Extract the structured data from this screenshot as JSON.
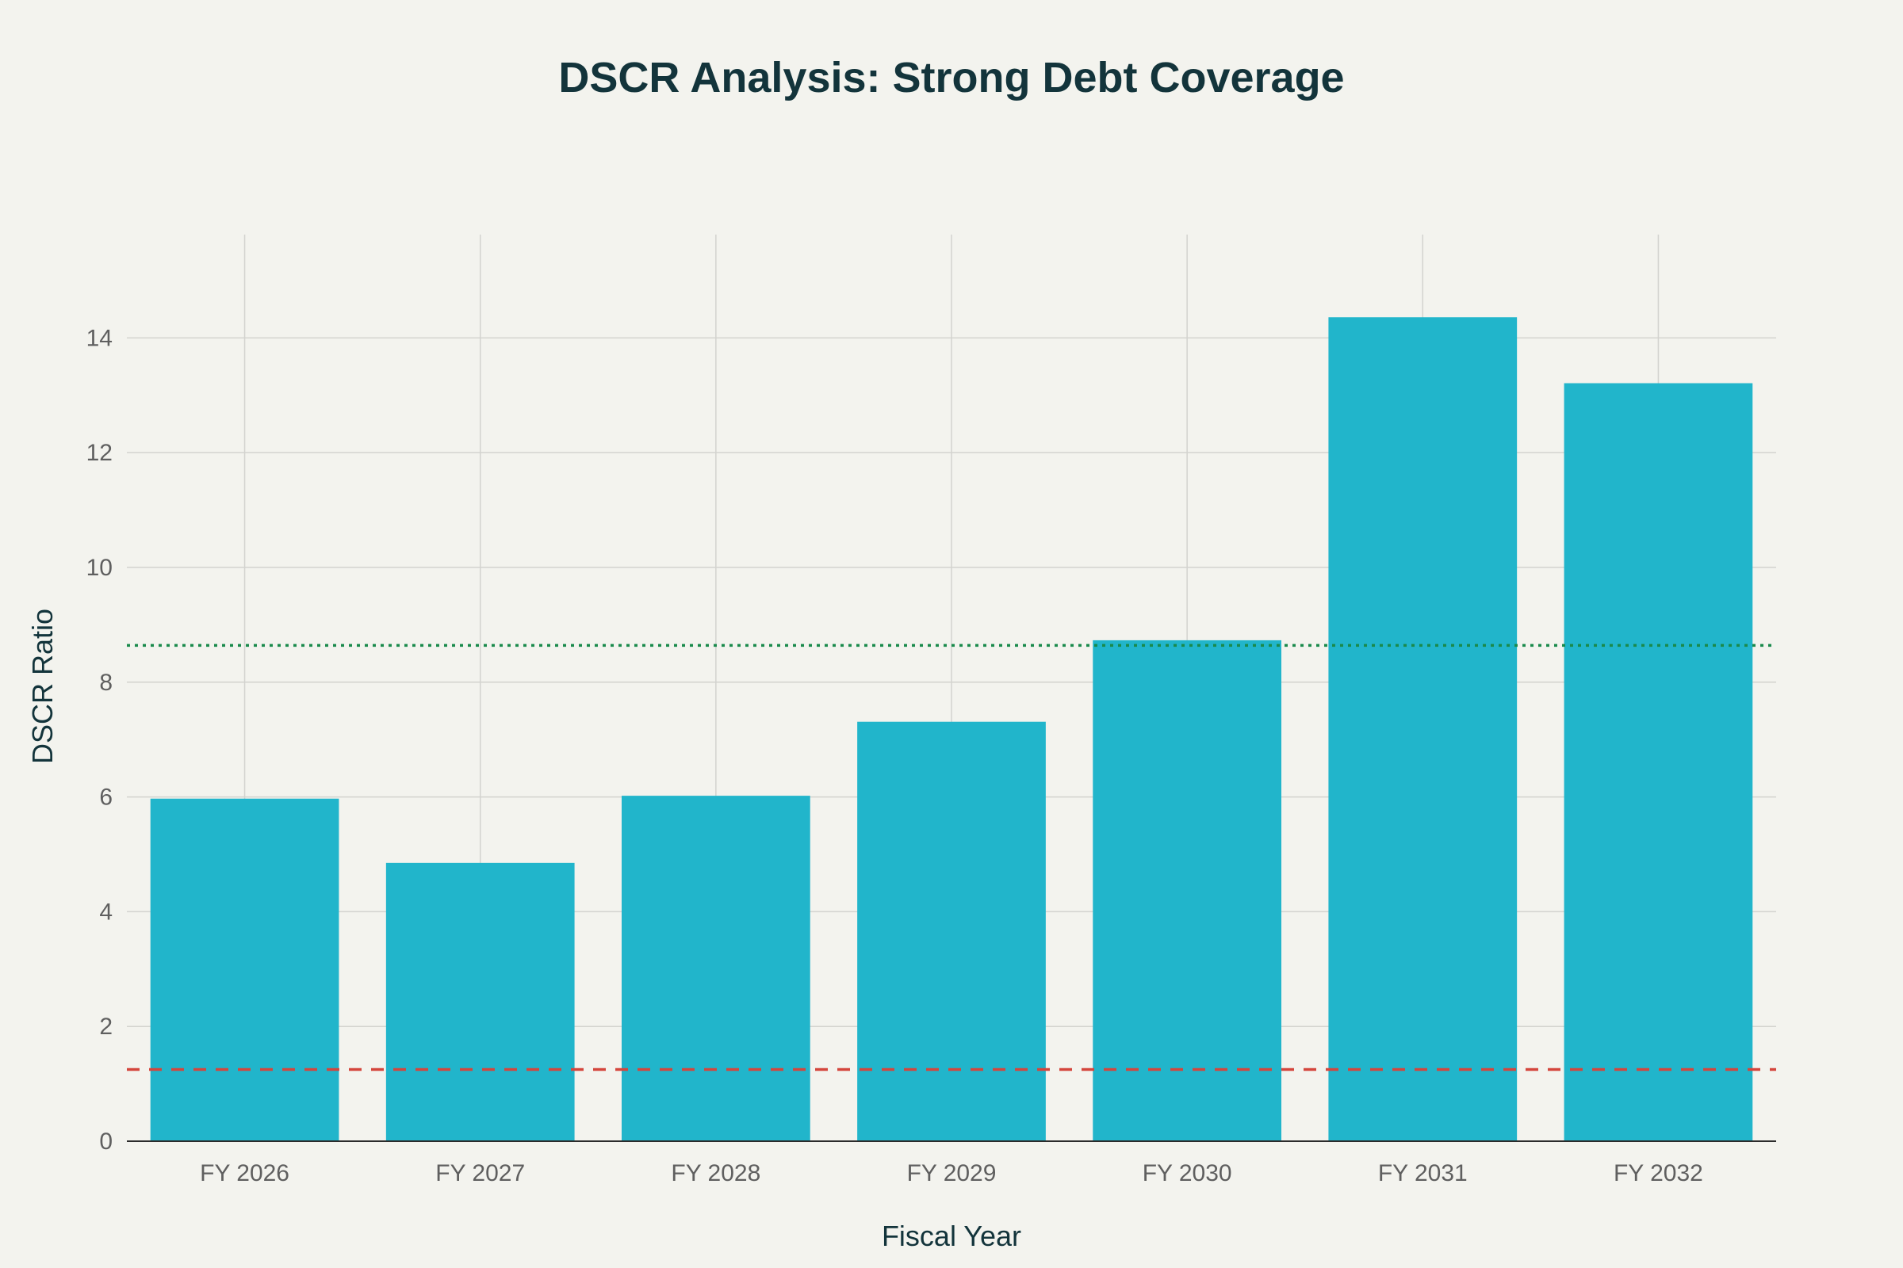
{
  "chart_data": {
    "type": "bar",
    "title": "DSCR Analysis: Strong Debt Coverage",
    "xlabel": "Fiscal Year",
    "ylabel": "DSCR Ratio",
    "categories": [
      "FY 2026",
      "FY 2027",
      "FY 2028",
      "FY 2029",
      "FY 2030",
      "FY 2031",
      "FY 2032"
    ],
    "values": [
      5.97,
      4.85,
      6.02,
      7.31,
      8.73,
      14.36,
      13.21
    ],
    "ylim": [
      0,
      15.8
    ],
    "yticks": [
      0,
      2,
      4,
      6,
      8,
      10,
      12,
      14
    ],
    "reference_lines": [
      {
        "value": 8.64,
        "style": "dotted",
        "color": "#1a8a4c"
      },
      {
        "value": 1.25,
        "style": "dashed",
        "color": "#d4453c"
      }
    ],
    "grid": true,
    "legend": "none",
    "colors": {
      "bar": "#21b5cb",
      "grid": "#d3d3cf",
      "axis": "#2b2b2b",
      "title": "#13343b",
      "tick_text": "#5f5f5f",
      "background": "#f3f3ee"
    }
  }
}
